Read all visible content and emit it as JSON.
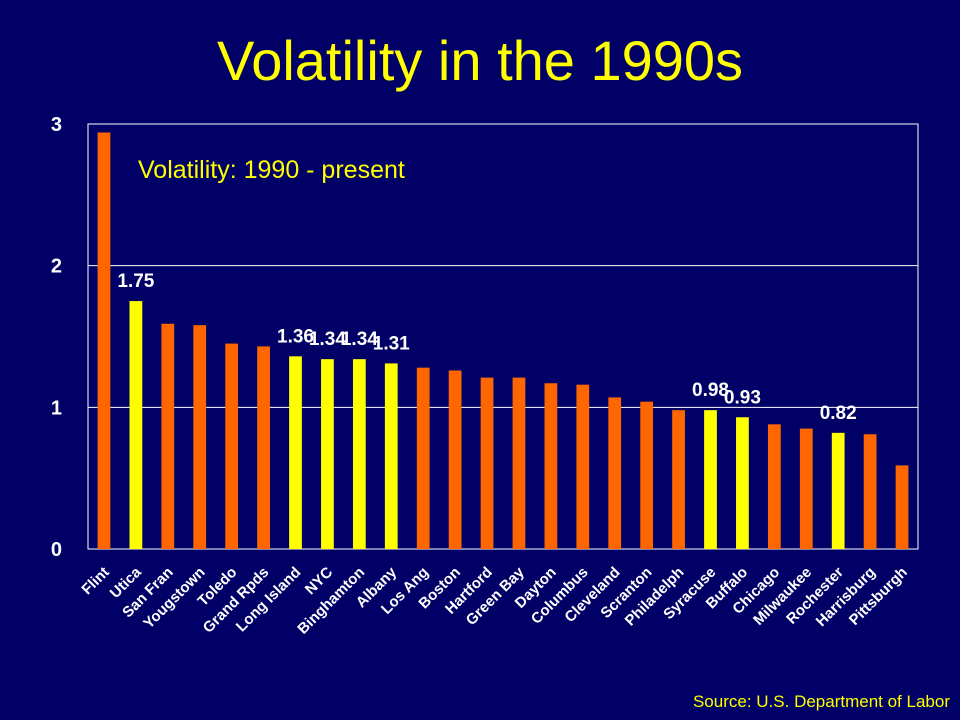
{
  "slide": {
    "title": "Volatility in the 1990s",
    "source": "Source:  U.S. Department of Labor"
  },
  "colors": {
    "background": "#000066",
    "title": "#ffff00",
    "bar_default": "#ff6600",
    "bar_highlight": "#ffff00",
    "text": "#ffffff",
    "annotation": "#ffff00"
  },
  "chart_data": {
    "type": "bar",
    "title": "",
    "annotation": "Volatility:  1990 - present",
    "xlabel": "",
    "ylabel": "",
    "ylim": [
      0,
      3
    ],
    "yticks": [
      0,
      1,
      2,
      3
    ],
    "grid": true,
    "categories": [
      "Flint",
      "Utica",
      "San Fran",
      "Yougstown",
      "Toledo",
      "Grand Rpds",
      "Long Island",
      "NYC",
      "Binghamton",
      "Albany",
      "Los Ang",
      "Boston",
      "Hartford",
      "Green Bay",
      "Dayton",
      "Columbus",
      "Cleveland",
      "Scranton",
      "Philadelph",
      "Syracuse",
      "Buffalo",
      "Chicago",
      "Milwaukee",
      "Rochester",
      "Harrisburg",
      "Pittsburgh"
    ],
    "values": [
      2.94,
      1.75,
      1.59,
      1.58,
      1.45,
      1.43,
      1.36,
      1.34,
      1.34,
      1.31,
      1.28,
      1.26,
      1.21,
      1.21,
      1.17,
      1.16,
      1.07,
      1.04,
      0.98,
      0.98,
      0.93,
      0.88,
      0.85,
      0.82,
      0.81,
      0.59
    ],
    "highlighted": [
      false,
      true,
      false,
      false,
      false,
      false,
      true,
      true,
      true,
      true,
      false,
      false,
      false,
      false,
      false,
      false,
      false,
      false,
      false,
      true,
      true,
      false,
      false,
      true,
      false,
      false
    ],
    "data_labels": [
      null,
      "1.75",
      null,
      null,
      null,
      null,
      "1.36",
      "1.34",
      "1.34",
      "1.31",
      null,
      null,
      null,
      null,
      null,
      null,
      null,
      null,
      null,
      "0.98",
      "0.93",
      null,
      null,
      "0.82",
      null,
      null
    ]
  }
}
